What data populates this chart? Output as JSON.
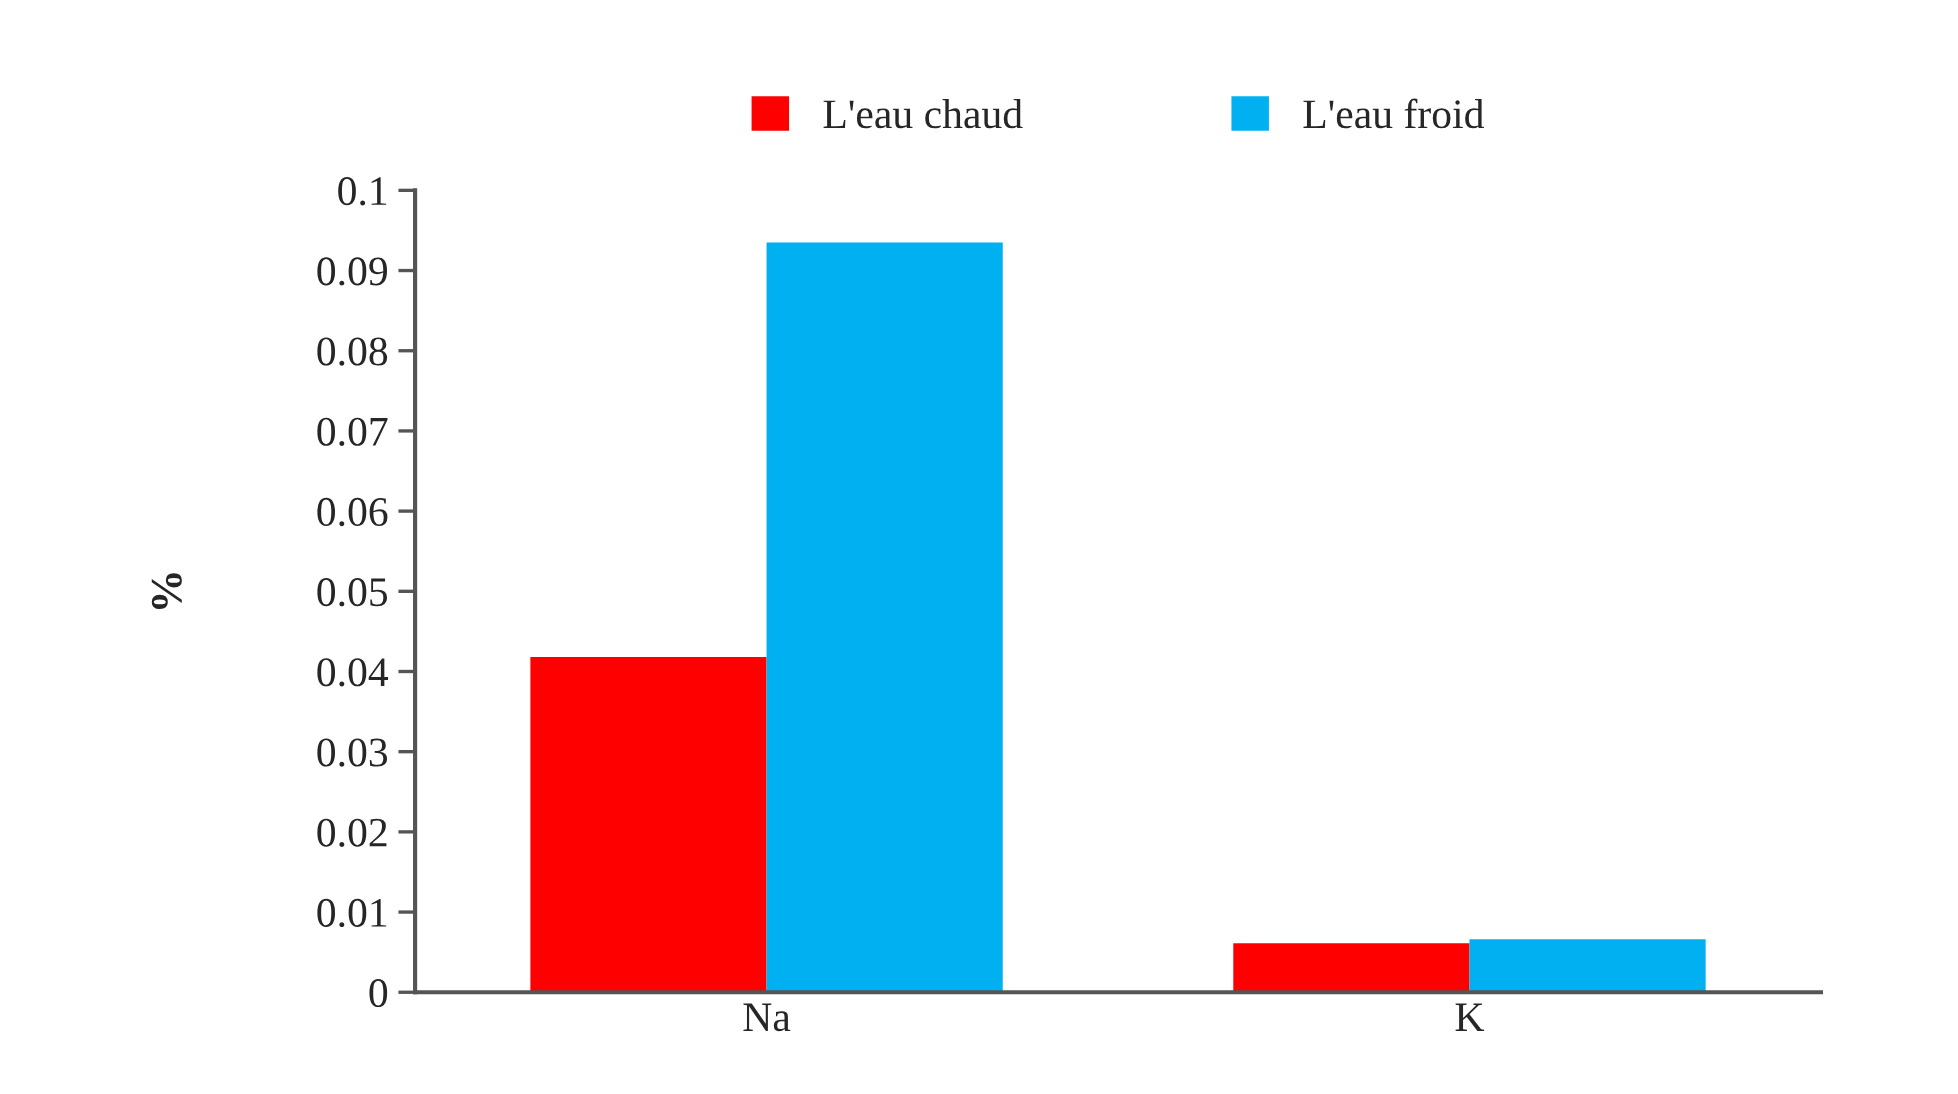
{
  "chart_data": {
    "type": "bar",
    "ylabel": "%",
    "categories": [
      "Na",
      "K"
    ],
    "series": [
      {
        "name": "L'eau chaud",
        "color": "#ff0000",
        "values": [
          0.0418,
          0.0061
        ]
      },
      {
        "name": "L'eau froid",
        "color": "#00b0f0",
        "values": [
          0.0935,
          0.0066
        ]
      }
    ],
    "ylim": [
      0,
      0.1
    ],
    "yticks": [
      0,
      0.01,
      0.02,
      0.03,
      0.04,
      0.05,
      0.06,
      0.07,
      0.08,
      0.09,
      0.1
    ],
    "grid": false,
    "legend": "top"
  }
}
